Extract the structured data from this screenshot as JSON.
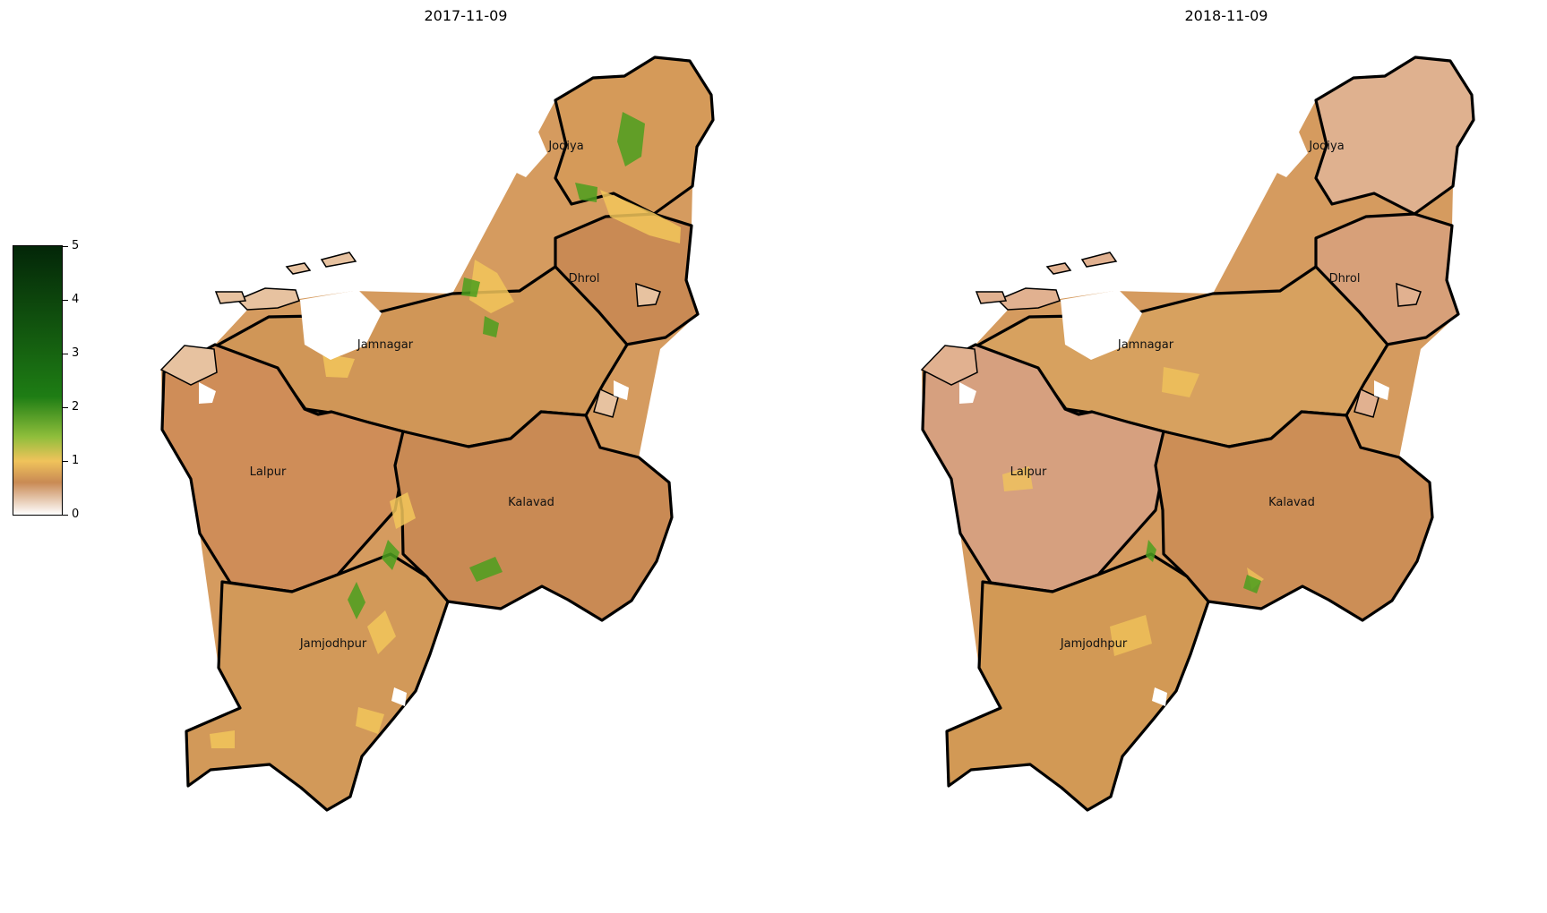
{
  "colorbar": {
    "min": 0,
    "max": 5,
    "ticks": [
      "0",
      "1",
      "2",
      "3",
      "4",
      "5"
    ],
    "stops": [
      {
        "value": 0,
        "color": "#ffffff"
      },
      {
        "value": 0.6,
        "color": "#c98a54"
      },
      {
        "value": 1.0,
        "color": "#f0c35b"
      },
      {
        "value": 1.45,
        "color": "#8fbe3b"
      },
      {
        "value": 2.2,
        "color": "#1e7d14"
      },
      {
        "value": 5.0,
        "color": "#032608"
      }
    ]
  },
  "maps": [
    {
      "title": "2017-11-09",
      "district_fill": {
        "Jodiya": "#d59a59",
        "Dhrol": "#c98a54",
        "Jamnagar": "#d09657",
        "Lalpur": "#cf8d58",
        "Kalavad": "#c98a54",
        "Jamjodhpur": "#d29959"
      }
    },
    {
      "title": "2018-11-09",
      "district_fill": {
        "Jodiya": "#dfb18f",
        "Dhrol": "#d7a079",
        "Jamnagar": "#d7a15f",
        "Lalpur": "#d6a07f",
        "Kalavad": "#cc8e56",
        "Jamjodhpur": "#d29955"
      }
    }
  ],
  "districts": [
    {
      "name": "Jodiya"
    },
    {
      "name": "Dhrol"
    },
    {
      "name": "Jamnagar"
    },
    {
      "name": "Lalpur"
    },
    {
      "name": "Kalavad"
    },
    {
      "name": "Jamjodhpur"
    }
  ],
  "highlights": {
    "green_spots": "#4c9f1f",
    "yellow_spots": "#f2c55a",
    "white_gaps": "#ffffff"
  }
}
